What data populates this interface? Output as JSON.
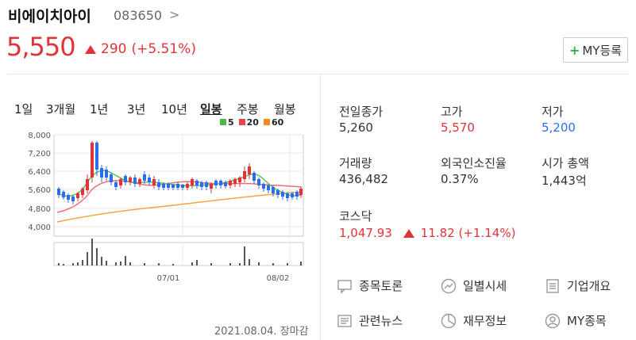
{
  "header": {
    "name": "비에이치아이",
    "code": "083650",
    "chevron": ">",
    "price": "5,550",
    "change_amount": "290",
    "change_pct": "(+5.51%)",
    "my_button": "MY등록"
  },
  "periods": [
    "1일",
    "3개월",
    "1년",
    "3년",
    "10년",
    "일봉",
    "주봉",
    "월봉"
  ],
  "legend": [
    {
      "label": "5",
      "color": "#4cb84a"
    },
    {
      "label": "20",
      "color": "#e8454a"
    },
    {
      "label": "60",
      "color": "#f08a2a"
    }
  ],
  "chart": {
    "y_ticks": [
      "8,000",
      "7,200",
      "6,400",
      "5,600",
      "4,800",
      "4,000"
    ],
    "x_ticks": [
      "07/01",
      "08/02"
    ],
    "date_label": "2021.08.04. 장마감"
  },
  "stats": [
    {
      "label": "전일종가",
      "value": "5,260",
      "tone": ""
    },
    {
      "label": "고가",
      "value": "5,570",
      "tone": "red"
    },
    {
      "label": "저가",
      "value": "5,200",
      "tone": "blue"
    },
    {
      "label": "거래량",
      "value": "436,482",
      "tone": ""
    },
    {
      "label": "외국인소진율",
      "value": "0.37%",
      "tone": ""
    },
    {
      "label": "시가 총액",
      "value": "1,443억",
      "tone": ""
    }
  ],
  "kosdaq": {
    "label": "코스닥",
    "value": "1,047.93",
    "change": "11.82 (+1.14%)"
  },
  "links": [
    {
      "label": "종목토론",
      "icon": "chat-icon"
    },
    {
      "label": "일별시세",
      "icon": "trend-icon"
    },
    {
      "label": "기업개요",
      "icon": "list-icon"
    },
    {
      "label": "관련뉴스",
      "icon": "news-icon"
    },
    {
      "label": "재무정보",
      "icon": "pie-icon"
    },
    {
      "label": "MY종목",
      "icon": "user-icon"
    }
  ]
}
